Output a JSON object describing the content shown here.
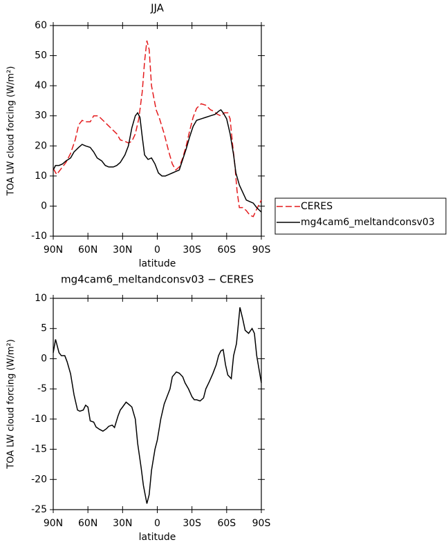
{
  "chart_data": [
    {
      "type": "line",
      "title": "JJA",
      "x_label": "latitude",
      "y_label": "TOA LW cloud forcing (W/m²)",
      "xlim": [
        90,
        -90
      ],
      "xticks": [
        {
          "value": 90,
          "label": "90N"
        },
        {
          "value": 60,
          "label": "60N"
        },
        {
          "value": 30,
          "label": "30N"
        },
        0,
        {
          "value": -30,
          "label": "30S"
        },
        {
          "value": -60,
          "label": "60S"
        },
        {
          "value": -90,
          "label": "90S"
        }
      ],
      "ylim": [
        -10,
        60
      ],
      "yticks": [
        -10,
        0,
        10,
        20,
        30,
        40,
        50,
        60
      ],
      "legend": "right",
      "series": [
        {
          "name": "CERES",
          "color": "#e41a1c",
          "line_style": "dashed",
          "x": [
            90,
            87,
            83,
            79,
            75,
            71,
            68,
            65,
            62,
            58,
            55,
            51,
            47,
            43,
            39,
            35,
            32,
            28,
            25,
            22,
            19,
            16,
            13,
            11,
            9,
            7,
            5,
            1,
            -2,
            -6,
            -10,
            -13,
            -16,
            -19,
            -22,
            -25,
            -28,
            -31,
            -34,
            -38,
            -42,
            -46,
            -49,
            -52,
            -55,
            -58,
            -61,
            -63,
            -65,
            -67,
            -69,
            -71,
            -74,
            -77,
            -80,
            -83,
            -86,
            -90
          ],
          "values": [
            12.5,
            10.5,
            12.5,
            14.5,
            17.5,
            22,
            27,
            28.5,
            28,
            28,
            30,
            30,
            28.5,
            27,
            25.5,
            24,
            22,
            21.5,
            21,
            21.5,
            24,
            29,
            38,
            48,
            55,
            52,
            40,
            32,
            29,
            24,
            18,
            14,
            12,
            13,
            16,
            20,
            25,
            29.5,
            32.5,
            34,
            33.5,
            32,
            31.5,
            30.5,
            30,
            31,
            31,
            29,
            21,
            14,
            5,
            -0.5,
            -0.5,
            -1.5,
            -3,
            -3.5,
            -1,
            2
          ]
        },
        {
          "name": "mg4cam6_meltandconsv03",
          "color": "#000000",
          "line_style": "solid",
          "x": [
            90,
            88,
            85,
            82,
            79,
            75,
            72,
            68,
            65,
            62,
            58,
            55,
            52,
            48,
            45,
            42,
            38,
            35,
            32,
            28,
            25,
            22,
            19,
            17,
            15,
            13,
            11,
            8,
            5,
            2,
            -1,
            -4,
            -7,
            -10,
            -13,
            -16,
            -19,
            -22,
            -25,
            -28,
            -31,
            -34,
            -38,
            -42,
            -46,
            -50,
            -53,
            -55,
            -57,
            -60,
            -63,
            -66,
            -68,
            -71,
            -74,
            -77,
            -80,
            -83,
            -86,
            -90
          ],
          "values": [
            12,
            13.5,
            13.5,
            14,
            15,
            16,
            18,
            19.5,
            20.5,
            20,
            19.5,
            18,
            16,
            15,
            13.5,
            13,
            13,
            13.5,
            14.5,
            17,
            20,
            26,
            30,
            31,
            29.5,
            23,
            17,
            15.5,
            16,
            14,
            11,
            10,
            10,
            10.5,
            11,
            11.5,
            12,
            15.5,
            19,
            23,
            26.5,
            28.5,
            29,
            29.5,
            30,
            30.5,
            31.5,
            32,
            31,
            29,
            24,
            17,
            11,
            7,
            4.5,
            2,
            1.5,
            1,
            -0.5,
            -2
          ]
        }
      ]
    },
    {
      "type": "line",
      "title": "mg4cam6_meltandconsv03 − CERES",
      "x_label": "latitude",
      "y_label": "TOA LW cloud forcing (W/m²)",
      "xlim": [
        90,
        -90
      ],
      "xticks": [
        {
          "value": 90,
          "label": "90N"
        },
        {
          "value": 60,
          "label": "60N"
        },
        {
          "value": 30,
          "label": "30N"
        },
        0,
        {
          "value": -30,
          "label": "30S"
        },
        {
          "value": -60,
          "label": "60S"
        },
        {
          "value": -90,
          "label": "90S"
        }
      ],
      "ylim": [
        -25,
        10
      ],
      "yticks": [
        -25,
        -20,
        -15,
        -10,
        -5,
        0,
        5,
        10
      ],
      "color": "#000000",
      "x": [
        90,
        88,
        85,
        83,
        80,
        78,
        75,
        72,
        69,
        67,
        64,
        62,
        60,
        58,
        55,
        53,
        50,
        47,
        44,
        42,
        39,
        37,
        34,
        32,
        30,
        27,
        25,
        22,
        19,
        17,
        14,
        12,
        9,
        7,
        5,
        2,
        0,
        -3,
        -6,
        -8,
        -11,
        -13,
        -16.5,
        -19,
        -22,
        -24,
        -27,
        -30,
        -32,
        -34,
        -37,
        -40,
        -42,
        -45,
        -48,
        -51,
        -53,
        -55,
        -57,
        -59,
        -61,
        -64,
        -66,
        -68.5,
        -71.5,
        -74,
        -76,
        -79,
        -82,
        -84,
        -86,
        -90
      ],
      "values": [
        1,
        3.2,
        1,
        0.5,
        0.5,
        -0.5,
        -2.5,
        -6,
        -8.5,
        -8.7,
        -8.5,
        -7.7,
        -8,
        -10.3,
        -10.5,
        -11.3,
        -11.7,
        -12,
        -11.6,
        -11.2,
        -11,
        -11.4,
        -9.5,
        -8.5,
        -8,
        -7.2,
        -7.5,
        -8,
        -10,
        -14,
        -18,
        -21,
        -24,
        -22.5,
        -18.5,
        -15,
        -13.5,
        -10,
        -7.5,
        -6.5,
        -5,
        -3,
        -2.2,
        -2.4,
        -3,
        -4,
        -5,
        -6.3,
        -6.8,
        -6.8,
        -7,
        -6.5,
        -5,
        -3.8,
        -2.5,
        -1,
        0.5,
        1.3,
        1.5,
        -1,
        -2.7,
        -3.3,
        0.5,
        2.5,
        8.5,
        6.5,
        4.7,
        4.2,
        5,
        4.2,
        0.5,
        -4
      ]
    }
  ]
}
